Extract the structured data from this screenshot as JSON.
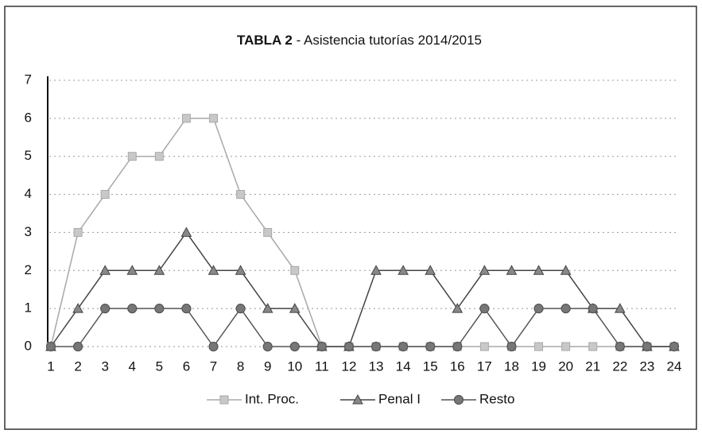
{
  "chart_data": {
    "type": "line",
    "title": [
      "TABLA 2",
      " - Asistencia tutorías 2014/2015"
    ],
    "categories": [
      1,
      2,
      3,
      4,
      5,
      6,
      7,
      8,
      9,
      10,
      11,
      12,
      13,
      14,
      15,
      16,
      17,
      18,
      19,
      20,
      21,
      22,
      23,
      24
    ],
    "series": [
      {
        "name": "Int. Proc.",
        "color": "#a8a8a8",
        "marker": "square",
        "values": [
          0,
          3,
          4,
          5,
          5,
          6,
          6,
          4,
          3,
          2,
          0,
          0,
          0,
          0,
          0,
          0,
          0,
          0,
          0,
          0,
          0,
          0,
          0,
          0
        ]
      },
      {
        "name": "Penal I",
        "color": "#444444",
        "marker": "triangle",
        "values": [
          0,
          1,
          2,
          2,
          2,
          3,
          2,
          2,
          1,
          1,
          0,
          0,
          2,
          2,
          2,
          1,
          2,
          2,
          2,
          2,
          1,
          1,
          0,
          0
        ]
      },
      {
        "name": "Resto",
        "color": "#555555",
        "marker": "circle",
        "values": [
          0,
          0,
          1,
          1,
          1,
          1,
          0,
          1,
          0,
          0,
          0,
          0,
          0,
          0,
          0,
          0,
          1,
          0,
          1,
          1,
          1,
          0,
          0,
          0
        ]
      }
    ],
    "ylim": [
      0,
      7
    ],
    "yticks": [
      0,
      1,
      2,
      3,
      4,
      5,
      6,
      7
    ],
    "grid": true,
    "legend": "bottom"
  }
}
